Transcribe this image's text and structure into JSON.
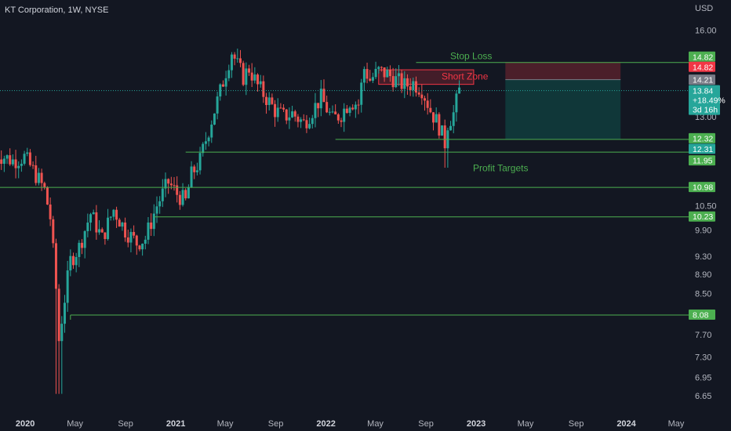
{
  "header": {
    "title": "KT Corporation, 1W, NYSE"
  },
  "currency": "USD",
  "chart_data": {
    "type": "candlestick",
    "title": "KT Corporation, 1W, NYSE",
    "ylabel": "USD",
    "ylim": [
      6.5,
      16.6
    ],
    "y_scale": "log",
    "y_ticks": [
      "16.00",
      "13.00",
      "10.50",
      "9.90",
      "9.30",
      "8.90",
      "8.50",
      "7.70",
      "7.30",
      "6.95",
      "6.65"
    ],
    "x_ticks": [
      {
        "label": "2020",
        "date": "2020-01-01",
        "bold": true
      },
      {
        "label": "May",
        "date": "2020-05-01",
        "bold": false
      },
      {
        "label": "Sep",
        "date": "2020-09-01",
        "bold": false
      },
      {
        "label": "2021",
        "date": "2021-01-01",
        "bold": true
      },
      {
        "label": "May",
        "date": "2021-05-01",
        "bold": false
      },
      {
        "label": "Sep",
        "date": "2021-09-01",
        "bold": false
      },
      {
        "label": "2022",
        "date": "2022-01-01",
        "bold": true
      },
      {
        "label": "May",
        "date": "2022-05-01",
        "bold": false
      },
      {
        "label": "Sep",
        "date": "2022-09-01",
        "bold": false
      },
      {
        "label": "2023",
        "date": "2023-01-01",
        "bold": true
      },
      {
        "label": "May",
        "date": "2023-05-01",
        "bold": false
      },
      {
        "label": "Sep",
        "date": "2023-09-01",
        "bold": false
      },
      {
        "label": "2024",
        "date": "2024-01-01",
        "bold": true
      },
      {
        "label": "May",
        "date": "2024-05-01",
        "bold": false
      }
    ],
    "x_range": [
      "2019-10-21",
      "2024-05-20"
    ],
    "price_path": [
      [
        "2019-10-21",
        11.9
      ],
      [
        "2019-12-02",
        11.7
      ],
      [
        "2019-12-30",
        11.8
      ],
      [
        "2020-01-27",
        11.3
      ],
      [
        "2020-02-17",
        10.9
      ],
      [
        "2020-03-02",
        10.2
      ],
      [
        "2020-03-16",
        8.6
      ],
      [
        "2020-03-23",
        7.6
      ],
      [
        "2020-04-06",
        8.4
      ],
      [
        "2020-04-20",
        9.2
      ],
      [
        "2020-05-11",
        9.5
      ],
      [
        "2020-06-08",
        10.3
      ],
      [
        "2020-07-06",
        9.7
      ],
      [
        "2020-08-03",
        10.4
      ],
      [
        "2020-08-31",
        9.9
      ],
      [
        "2020-09-28",
        9.6
      ],
      [
        "2020-10-19",
        9.7
      ],
      [
        "2020-11-16",
        10.5
      ],
      [
        "2020-12-14",
        11.1
      ],
      [
        "2021-01-04",
        10.8
      ],
      [
        "2021-01-25",
        10.6
      ],
      [
        "2021-02-08",
        11.3
      ],
      [
        "2021-03-01",
        11.7
      ],
      [
        "2021-03-22",
        12.6
      ],
      [
        "2021-04-19",
        13.8
      ],
      [
        "2021-05-03",
        14.5
      ],
      [
        "2021-05-17",
        15.2
      ],
      [
        "2021-05-31",
        14.7
      ],
      [
        "2021-06-14",
        14.3
      ],
      [
        "2021-06-28",
        14.6
      ],
      [
        "2021-07-19",
        14.0
      ],
      [
        "2021-08-09",
        13.6
      ],
      [
        "2021-08-30",
        13.2
      ],
      [
        "2021-09-20",
        13.0
      ],
      [
        "2021-10-11",
        13.1
      ],
      [
        "2021-11-08",
        12.8
      ],
      [
        "2021-11-29",
        13.2
      ],
      [
        "2021-12-20",
        13.6
      ],
      [
        "2022-01-17",
        12.9
      ],
      [
        "2022-02-07",
        13.1
      ],
      [
        "2022-02-28",
        13.5
      ],
      [
        "2022-03-21",
        13.4
      ],
      [
        "2022-04-04",
        14.6
      ],
      [
        "2022-04-18",
        14.2
      ],
      [
        "2022-05-09",
        14.5
      ],
      [
        "2022-05-30",
        14.4
      ],
      [
        "2022-06-20",
        14.2
      ],
      [
        "2022-07-11",
        14.0
      ],
      [
        "2022-08-01",
        14.1
      ],
      [
        "2022-08-22",
        13.9
      ],
      [
        "2022-09-12",
        13.2
      ],
      [
        "2022-10-03",
        12.7
      ],
      [
        "2022-10-17",
        12.2
      ],
      [
        "2022-10-24",
        12.8
      ],
      [
        "2022-11-07",
        13.1
      ],
      [
        "2022-11-21",
        13.84
      ]
    ],
    "levels": [
      {
        "value": 14.82,
        "start": "2022-08-08",
        "label": "14.82",
        "color": "#4caf50"
      },
      {
        "value": 12.32,
        "start": "2022-01-24",
        "label": "12.32",
        "color": "#4caf50"
      },
      {
        "value": 11.95,
        "start": "2021-01-25",
        "label": "11.95",
        "color": "#4caf50"
      },
      {
        "value": 10.98,
        "start": "2019-10-21",
        "label": "10.98",
        "color": "#4caf50"
      },
      {
        "value": 10.23,
        "start": "2020-11-09",
        "label": "10.23",
        "color": "#4caf50"
      },
      {
        "value": 8.08,
        "start": "2020-04-20",
        "label": "8.08",
        "color": "#4caf50"
      }
    ],
    "annotations": [
      {
        "text": "Stop Loss",
        "color": "#4caf50"
      },
      {
        "text": "Short Zone",
        "color": "#f23645"
      },
      {
        "text": "Profit Targets",
        "color": "#4caf50"
      }
    ],
    "short_zone": {
      "start": "2022-05-09",
      "end": "2022-12-26",
      "low": 14.05,
      "high": 14.55
    },
    "position": {
      "start": "2023-03-13",
      "end": "2023-12-18",
      "entry": 14.21,
      "stop": 14.82,
      "target": 12.32
    },
    "axis_badges": [
      {
        "text": "14.82",
        "value": 14.82,
        "bg": "#4caf50"
      },
      {
        "text": "14.82",
        "value": 14.82,
        "bg": "#f23645"
      },
      {
        "text": "14.21",
        "value": 14.21,
        "bg": "#787b86"
      },
      {
        "text": "12.32",
        "value": 12.32,
        "bg": "#4caf50"
      },
      {
        "text": "12.31",
        "value": 12.31,
        "bg": "#26a69a"
      },
      {
        "text": "11.95",
        "value": 11.95,
        "bg": "#4caf50"
      },
      {
        "text": "10.98",
        "value": 10.98,
        "bg": "#4caf50"
      },
      {
        "text": "10.23",
        "value": 10.23,
        "bg": "#4caf50"
      },
      {
        "text": "8.08",
        "value": 8.08,
        "bg": "#4caf50"
      }
    ],
    "last_price": {
      "value": 13.84,
      "lines": [
        "13.84",
        "+18.49%",
        "3d 16h"
      ],
      "bg": "#26a69a"
    },
    "colors": {
      "up": "#26a69a",
      "down": "#ef5350",
      "background": "#131722",
      "text": "#b2b5be"
    }
  }
}
